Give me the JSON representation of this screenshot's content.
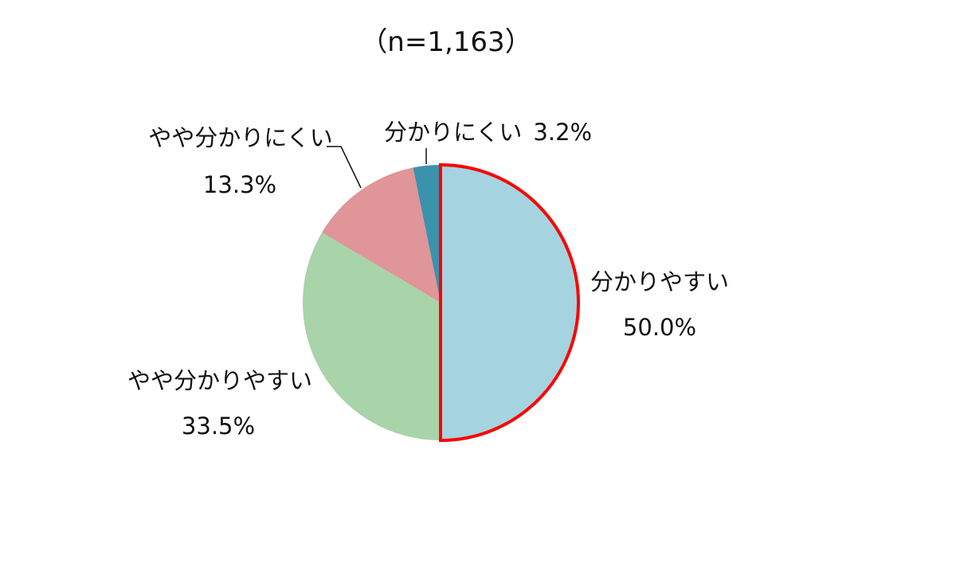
{
  "chart_data": {
    "type": "pie",
    "title": "（n=1,163）",
    "start": "top",
    "direction": "clockwise",
    "slices": [
      {
        "label": "分かりやすい",
        "value": 50.0,
        "value_label": "50.0%",
        "color": "#a6d3e0",
        "highlight": "#ff0000"
      },
      {
        "label": "やや分かりやすい",
        "value": 33.5,
        "value_label": "33.5%",
        "color": "#a9d3a8"
      },
      {
        "label": "やや分かりにくい",
        "value": 13.3,
        "value_label": "13.3%",
        "color": "#e09598"
      },
      {
        "label": "分かりにくい",
        "value": 3.2,
        "value_label": "3.2%",
        "color": "#3b92ad"
      }
    ]
  }
}
